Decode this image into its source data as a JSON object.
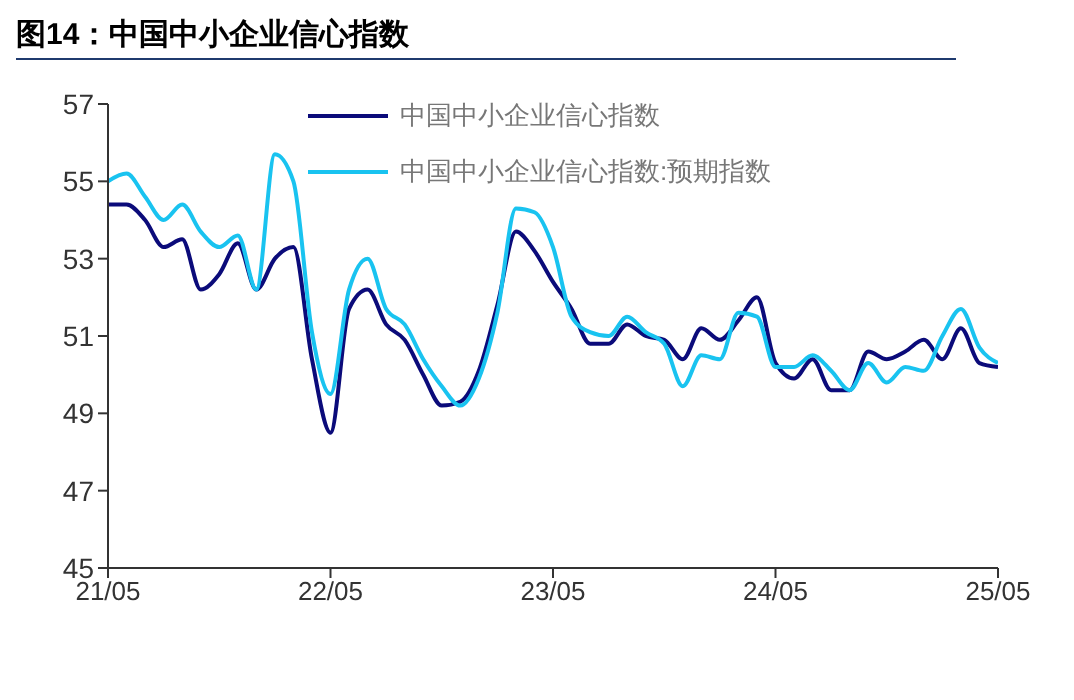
{
  "chart_data": {
    "type": "line",
    "title": "图14：中国中小企业信心指数",
    "categories": [
      "21/05",
      null,
      null,
      null,
      null,
      null,
      null,
      null,
      null,
      null,
      null,
      null,
      "22/05",
      null,
      null,
      null,
      null,
      null,
      null,
      null,
      null,
      null,
      null,
      null,
      "23/05",
      null,
      null,
      null,
      null,
      null,
      null,
      null,
      null,
      null,
      null,
      null,
      "24/05",
      null,
      null,
      null,
      null,
      null,
      null,
      null,
      null,
      null,
      null,
      null,
      "25/05"
    ],
    "series": [
      {
        "name": "中国中小企业信心指数",
        "color": "#0b0b7a",
        "values": [
          54.4,
          54.4,
          54.0,
          53.3,
          53.5,
          52.2,
          52.6,
          53.4,
          52.2,
          53.0,
          53.3,
          50.4,
          48.5,
          51.7,
          52.2,
          51.3,
          50.9,
          50.0,
          49.2,
          49.3,
          50.1,
          51.8,
          53.7,
          53.2,
          52.4,
          51.7,
          50.8,
          50.8,
          51.3,
          51.0,
          50.9,
          50.4,
          51.2,
          50.9,
          51.4,
          52.0,
          50.3,
          49.9,
          50.4,
          49.6,
          49.6,
          50.6,
          50.4,
          50.6,
          50.9,
          50.4,
          51.2,
          50.3,
          50.2
        ]
      },
      {
        "name": "中国中小企业信心指数:预期指数",
        "color": "#19c3f0",
        "values": [
          55.0,
          55.2,
          54.6,
          54.0,
          54.4,
          53.7,
          53.3,
          53.6,
          52.2,
          55.7,
          55.0,
          51.1,
          49.5,
          52.2,
          53.0,
          51.7,
          51.3,
          50.4,
          49.7,
          49.2,
          49.9,
          51.6,
          54.3,
          54.2,
          53.3,
          51.5,
          51.1,
          51.0,
          51.5,
          51.1,
          50.8,
          49.7,
          50.5,
          50.4,
          51.6,
          51.5,
          50.2,
          50.2,
          50.5,
          50.1,
          49.6,
          50.3,
          49.8,
          50.2,
          50.1,
          51.0,
          51.7,
          50.7,
          50.3
        ]
      }
    ],
    "ylim": [
      45,
      57
    ],
    "yticks": [
      45,
      47,
      49,
      51,
      53,
      55,
      57
    ],
    "grid": false,
    "legend": "top",
    "marker": "none",
    "line_style": "solid"
  }
}
